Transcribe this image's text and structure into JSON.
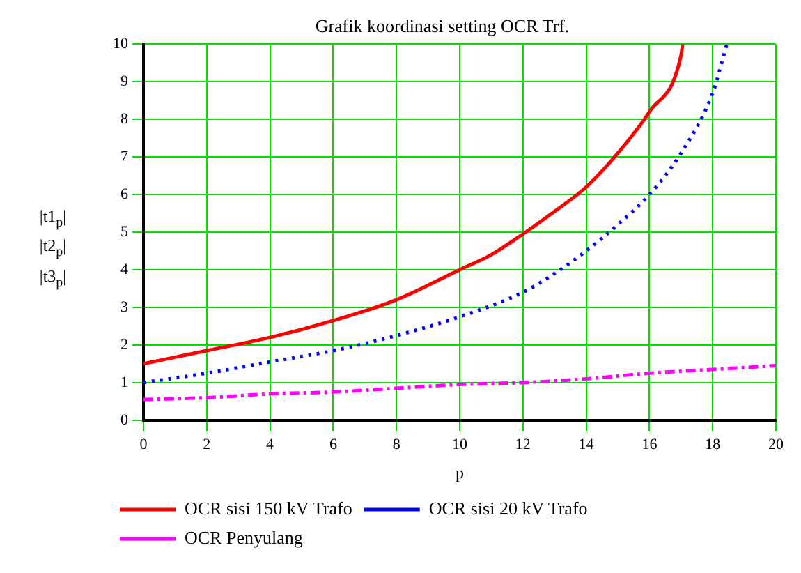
{
  "chart_data": {
    "type": "line",
    "title": "Grafik koordinasi setting OCR Trf.",
    "xlabel": "p",
    "annotations": [
      "|t1$_{p}$|",
      "|t2$_{p}$|",
      "|t3$_{p}$|"
    ],
    "xlim": [
      0,
      20
    ],
    "ylim": [
      0,
      10
    ],
    "xticks": [
      0,
      2,
      4,
      6,
      8,
      10,
      12,
      14,
      16,
      18,
      20
    ],
    "yticks": [
      0,
      1,
      2,
      3,
      4,
      5,
      6,
      7,
      8,
      9,
      10
    ],
    "grid": true,
    "legend": "bottom left",
    "marker": "none",
    "series": [
      {
        "name": "OCR sisi 150 kV Trafo",
        "color": "#ff0000",
        "line_style": "solid",
        "x": [
          0,
          2,
          4,
          6,
          8,
          10,
          11,
          12,
          13,
          14,
          15,
          16,
          17,
          17.05
        ],
        "values": [
          1.5,
          1.85,
          2.2,
          2.65,
          3.2,
          4.0,
          4.4,
          4.95,
          5.55,
          6.2,
          7.1,
          8.2,
          9.7,
          10
        ]
      },
      {
        "name": "OCR sisi 20 kV Trafo",
        "color": "#0000ff",
        "line_style": "dotted",
        "x": [
          0,
          2,
          4,
          6,
          8,
          10,
          12,
          13,
          14,
          15,
          16,
          17,
          18,
          18.45
        ],
        "values": [
          1.0,
          1.25,
          1.55,
          1.85,
          2.25,
          2.75,
          3.4,
          3.9,
          4.5,
          5.2,
          6.0,
          7.1,
          8.7,
          10
        ]
      },
      {
        "name": "OCR Penyulang",
        "color": "#ff00ff",
        "line_style": "dashed",
        "x": [
          0,
          2,
          4,
          6,
          8,
          10,
          12,
          14,
          16,
          18,
          20
        ],
        "values": [
          0.55,
          0.6,
          0.7,
          0.75,
          0.85,
          0.95,
          1.0,
          1.1,
          1.25,
          1.35,
          1.45
        ]
      }
    ]
  }
}
